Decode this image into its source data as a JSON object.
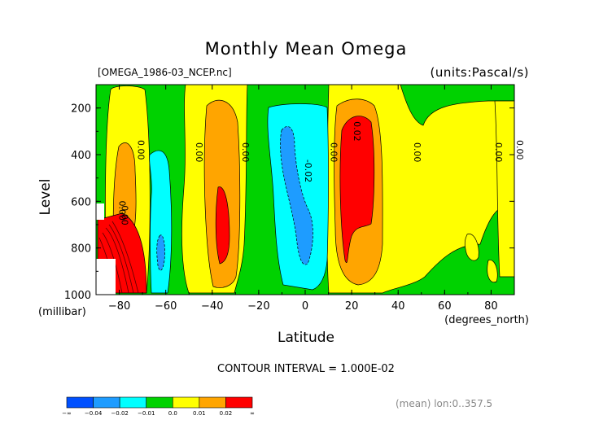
{
  "chart_data": {
    "type": "heatmap",
    "title": "Monthly Mean Omega",
    "subtitle_left": "[OMEGA_1986-03_NCEP.nc]",
    "subtitle_right": "(units:Pascal/s)",
    "xlabel": "Latitude",
    "xunit": "(degrees_north)",
    "ylabel": "Level",
    "yunit": "(millibar)",
    "xlim": [
      -90,
      90
    ],
    "ylim": [
      1000,
      100
    ],
    "x_ticks": [
      "-80",
      "-60",
      "-40",
      "-20",
      "0",
      "20",
      "40",
      "60",
      "80"
    ],
    "y_ticks": [
      "200",
      "400",
      "600",
      "800",
      "1000"
    ],
    "contour_interval_text": "CONTOUR INTERVAL = 1.000E-02",
    "contour_labels": [
      "0.00",
      "0.00",
      "0.00",
      "0.00",
      "0.00",
      "0.00",
      "0.00",
      "0.00",
      "0.00",
      "-0.02",
      "0.02",
      "0.02"
    ],
    "colorbar": {
      "labels": [
        "-∞",
        "-0.04",
        "-0.02",
        "-0.01",
        "0.0",
        "0.01",
        "0.02",
        "∞"
      ],
      "colors": [
        "#0050ff",
        "#1e9cff",
        "#00ffff",
        "#00d200",
        "#ffff00",
        "#ffa500",
        "#ff0000"
      ]
    },
    "footer": "(mean) lon:0..357.5"
  }
}
